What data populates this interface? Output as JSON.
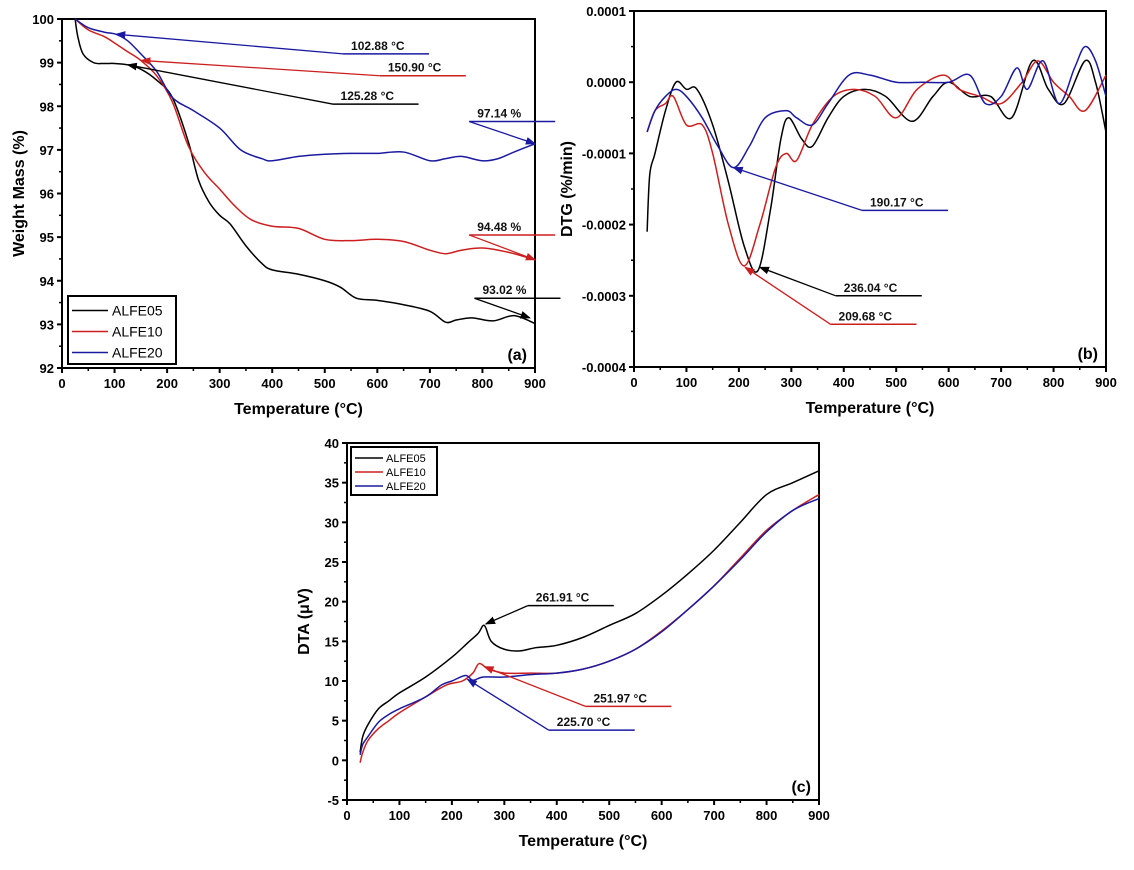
{
  "colors": {
    "ALFE05": "#000000",
    "ALFE10": "#cc1f1f",
    "ALFE20": "#1a1aa0"
  },
  "chart_data": [
    {
      "id": "a",
      "type": "line",
      "panel_label": "(a)",
      "xlabel": "Temperature (°C)",
      "ylabel": "Weight Mass (%)",
      "xlim": [
        0,
        900
      ],
      "ylim": [
        92,
        100
      ],
      "xticks": [
        0,
        100,
        200,
        300,
        400,
        500,
        600,
        700,
        800,
        900
      ],
      "yticks": [
        92,
        93,
        94,
        95,
        96,
        97,
        98,
        99,
        100
      ],
      "legend": {
        "position": "bottom-left",
        "entries": [
          "ALFE05",
          "ALFE10",
          "ALFE20"
        ]
      },
      "series": [
        {
          "name": "ALFE05",
          "x": [
            25,
            30,
            40,
            60,
            80,
            100,
            125,
            150,
            180,
            210,
            240,
            260,
            280,
            300,
            320,
            350,
            380,
            400,
            450,
            500,
            530,
            560,
            600,
            650,
            700,
            730,
            750,
            780,
            820,
            860,
            900
          ],
          "y": [
            100,
            99.6,
            99.2,
            99.0,
            98.98,
            98.98,
            98.95,
            98.85,
            98.6,
            98.2,
            97.2,
            96.3,
            95.8,
            95.5,
            95.3,
            94.8,
            94.4,
            94.25,
            94.15,
            94.0,
            93.85,
            93.6,
            93.55,
            93.45,
            93.3,
            93.05,
            93.1,
            93.15,
            93.08,
            93.2,
            93.02
          ]
        },
        {
          "name": "ALFE10",
          "x": [
            25,
            50,
            80,
            100,
            125,
            150,
            180,
            210,
            240,
            270,
            300,
            330,
            360,
            400,
            450,
            500,
            550,
            600,
            650,
            700,
            730,
            760,
            800,
            850,
            900
          ],
          "y": [
            100,
            99.75,
            99.6,
            99.45,
            99.25,
            99.05,
            98.7,
            98.1,
            97.1,
            96.5,
            96.1,
            95.7,
            95.4,
            95.25,
            95.2,
            94.95,
            94.92,
            94.95,
            94.9,
            94.7,
            94.62,
            94.7,
            94.75,
            94.65,
            94.48
          ]
        },
        {
          "name": "ALFE20",
          "x": [
            25,
            50,
            80,
            103,
            125,
            150,
            180,
            210,
            250,
            300,
            340,
            380,
            400,
            450,
            500,
            550,
            600,
            650,
            700,
            730,
            760,
            800,
            830,
            860,
            900
          ],
          "y": [
            100,
            99.8,
            99.7,
            99.65,
            99.5,
            99.2,
            98.8,
            98.2,
            97.9,
            97.5,
            97.0,
            96.8,
            96.75,
            96.85,
            96.9,
            96.92,
            96.92,
            96.95,
            96.75,
            96.8,
            96.85,
            96.75,
            96.8,
            96.95,
            97.14
          ]
        }
      ],
      "annotations": [
        {
          "text": "102.88 °C",
          "series": "ALFE20",
          "x": 103,
          "y": 99.65,
          "label_x": 550,
          "label_y": 99.2
        },
        {
          "text": "150.90 °C",
          "series": "ALFE10",
          "x": 151,
          "y": 99.05,
          "label_x": 620,
          "label_y": 98.7
        },
        {
          "text": "125.28 °C",
          "series": "ALFE05",
          "x": 125,
          "y": 98.95,
          "label_x": 530,
          "label_y": 98.05
        },
        {
          "text": "97.14 %",
          "series": "ALFE20",
          "x": 900,
          "y": 97.14,
          "label_x": 790,
          "label_y": 97.65
        },
        {
          "text": "94.48 %",
          "series": "ALFE10",
          "x": 900,
          "y": 94.48,
          "label_x": 790,
          "label_y": 95.05
        },
        {
          "text": "93.02 %",
          "series": "ALFE05",
          "x": 890,
          "y": 93.15,
          "label_x": 800,
          "label_y": 93.6
        }
      ]
    },
    {
      "id": "b",
      "type": "line",
      "panel_label": "(b)",
      "xlabel": "Temperature (°C)",
      "ylabel": "DTG (%/min)",
      "xlim": [
        0,
        900
      ],
      "ylim": [
        -0.0004,
        0.0001
      ],
      "xticks": [
        0,
        100,
        200,
        300,
        400,
        500,
        600,
        700,
        800,
        900
      ],
      "yticks": [
        -0.0004,
        -0.0003,
        -0.0002,
        -0.0001,
        0.0,
        0.0001
      ],
      "ytick_labels": [
        "-0.0004",
        "-0.0003",
        "-0.0002",
        "-0.0001",
        "0.0000",
        "0.0001"
      ],
      "series": [
        {
          "name": "ALFE05",
          "x": [
            25,
            30,
            40,
            60,
            80,
            100,
            120,
            150,
            180,
            210,
            236,
            260,
            280,
            295,
            320,
            340,
            370,
            400,
            440,
            480,
            530,
            570,
            600,
            640,
            680,
            720,
            760,
            790,
            820,
            860,
            880,
            900
          ],
          "y": [
            -0.00021,
            -0.00013,
            -0.0001,
            -4e-05,
            0.0,
            -1e-05,
            -1e-05,
            -6e-05,
            -0.00014,
            -0.00023,
            -0.000265,
            -0.00018,
            -8e-05,
            -5e-05,
            -8e-05,
            -9e-05,
            -5e-05,
            -2e-05,
            -1e-05,
            -2e-05,
            -5.5e-05,
            -2e-05,
            0.0,
            -2e-05,
            -2e-05,
            -5e-05,
            3e-05,
            -1e-05,
            -3e-05,
            3e-05,
            0.0,
            -7e-05
          ]
        },
        {
          "name": "ALFE10",
          "x": [
            25,
            40,
            60,
            75,
            100,
            130,
            150,
            180,
            210,
            240,
            270,
            290,
            310,
            340,
            380,
            420,
            460,
            500,
            540,
            590,
            620,
            660,
            700,
            740,
            770,
            800,
            830,
            860,
            900
          ],
          "y": [
            -7e-05,
            -4e-05,
            -3e-05,
            -2e-05,
            -6e-05,
            -6e-05,
            -0.0001,
            -0.0002,
            -0.000258,
            -0.0002,
            -0.00012,
            -0.0001,
            -0.00011,
            -6e-05,
            -2e-05,
            -1e-05,
            -2e-05,
            -5e-05,
            -1e-05,
            1e-05,
            -1e-05,
            -2e-05,
            -3e-05,
            0.0,
            3e-05,
            0.0,
            -2e-05,
            -4e-05,
            1e-05
          ]
        },
        {
          "name": "ALFE20",
          "x": [
            25,
            40,
            60,
            80,
            100,
            130,
            160,
            190,
            220,
            250,
            290,
            310,
            340,
            370,
            410,
            450,
            500,
            550,
            600,
            640,
            670,
            700,
            730,
            750,
            780,
            810,
            840,
            860,
            880,
            900
          ],
          "y": [
            -7e-05,
            -4e-05,
            -2e-05,
            -1e-05,
            -2e-05,
            -5e-05,
            -9e-05,
            -0.00012,
            -9e-05,
            -5e-05,
            -4e-05,
            -5e-05,
            -6e-05,
            -3e-05,
            1e-05,
            1e-05,
            0.0,
            0.0,
            0.0,
            1e-05,
            -3e-05,
            -2e-05,
            2e-05,
            -1e-05,
            3e-05,
            -3e-05,
            2e-05,
            5e-05,
            3e-05,
            -2e-05
          ]
        }
      ],
      "annotations": [
        {
          "text": "190.17 °C",
          "series": "ALFE20",
          "x": 190,
          "y": -0.00012,
          "label_x": 450,
          "label_y": -0.00018
        },
        {
          "text": "236.04 °C",
          "series": "ALFE05",
          "x": 240,
          "y": -0.00026,
          "label_x": 400,
          "label_y": -0.0003
        },
        {
          "text": "209.68 °C",
          "series": "ALFE10",
          "x": 212,
          "y": -0.00026,
          "label_x": 390,
          "label_y": -0.00034
        }
      ]
    },
    {
      "id": "c",
      "type": "line",
      "panel_label": "(c)",
      "xlabel": "Temperature (°C)",
      "ylabel": "DTA (μV)",
      "xlim": [
        0,
        900
      ],
      "ylim": [
        -5,
        40
      ],
      "xticks": [
        0,
        100,
        200,
        300,
        400,
        500,
        600,
        700,
        800,
        900
      ],
      "yticks": [
        -5,
        0,
        5,
        10,
        15,
        20,
        25,
        30,
        35,
        40
      ],
      "legend": {
        "position": "top-left",
        "entries": [
          "ALFE05",
          "ALFE10",
          "ALFE20"
        ]
      },
      "series": [
        {
          "name": "ALFE05",
          "x": [
            25,
            30,
            40,
            60,
            80,
            100,
            150,
            200,
            230,
            250,
            262,
            275,
            300,
            330,
            360,
            400,
            450,
            500,
            550,
            600,
            650,
            700,
            750,
            800,
            850,
            900
          ],
          "y": [
            1,
            3,
            4.5,
            6.5,
            7.5,
            8.5,
            10.5,
            13,
            14.8,
            16,
            17,
            15,
            14,
            13.8,
            14.2,
            14.5,
            15.5,
            17,
            18.5,
            20.8,
            23.5,
            26.5,
            30,
            33.5,
            35,
            36.5
          ]
        },
        {
          "name": "ALFE10",
          "x": [
            25,
            30,
            40,
            60,
            80,
            100,
            150,
            190,
            220,
            240,
            252,
            270,
            300,
            350,
            400,
            450,
            500,
            550,
            600,
            650,
            700,
            750,
            800,
            850,
            900
          ],
          "y": [
            -0.3,
            1,
            2.5,
            4,
            5,
            6,
            8,
            9.5,
            10,
            11,
            12.2,
            11.5,
            11,
            11,
            11,
            11.5,
            12.5,
            14,
            16.3,
            19,
            22,
            25.5,
            29,
            31.5,
            33.5
          ]
        },
        {
          "name": "ALFE20",
          "x": [
            25,
            30,
            40,
            60,
            80,
            100,
            150,
            180,
            200,
            226,
            240,
            260,
            300,
            350,
            400,
            450,
            500,
            550,
            600,
            650,
            700,
            750,
            800,
            850,
            900
          ],
          "y": [
            0.7,
            2,
            3,
            4.8,
            5.8,
            6.5,
            8,
            9.5,
            10,
            10.7,
            10.1,
            10.5,
            10.5,
            10.8,
            11,
            11.5,
            12.5,
            14,
            16.2,
            19,
            22,
            25.3,
            28.8,
            31.5,
            33
          ]
        }
      ],
      "annotations": [
        {
          "text": "261.91 °C",
          "series": "ALFE05",
          "x": 265,
          "y": 17.2,
          "label_x": 360,
          "label_y": 19.5
        },
        {
          "text": "251.97 °C",
          "series": "ALFE10",
          "x": 262,
          "y": 11.8,
          "label_x": 470,
          "label_y": 6.8
        },
        {
          "text": "225.70 °C",
          "series": "ALFE20",
          "x": 230,
          "y": 10.2,
          "label_x": 400,
          "label_y": 3.8
        }
      ]
    }
  ]
}
